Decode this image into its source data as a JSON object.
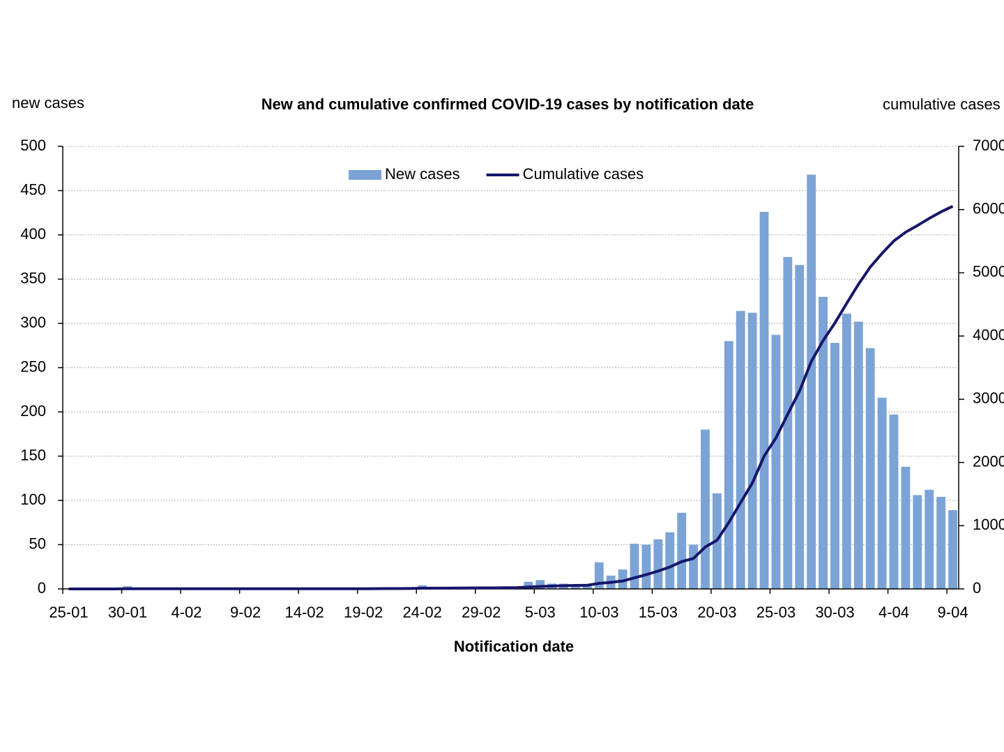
{
  "chart_data": {
    "type": "bar_line",
    "title": "New and cumulative confirmed COVID-19 cases by notification date",
    "y_label": "new cases",
    "y2_label": "cumulative cases",
    "x_label": "Notification date",
    "categories": [
      "25-01",
      null,
      null,
      null,
      null,
      "30-01",
      null,
      null,
      null,
      null,
      "4-02",
      null,
      null,
      null,
      null,
      "9-02",
      null,
      null,
      null,
      null,
      "14-02",
      null,
      null,
      null,
      null,
      "19-02",
      null,
      null,
      null,
      null,
      "24-02",
      null,
      null,
      null,
      null,
      "29-02",
      null,
      null,
      null,
      null,
      "5-03",
      null,
      null,
      null,
      null,
      "10-03",
      null,
      null,
      null,
      null,
      "15-03",
      null,
      null,
      null,
      null,
      "20-03",
      null,
      null,
      null,
      null,
      "25-03",
      null,
      null,
      null,
      null,
      "30-03",
      null,
      null,
      null,
      null,
      "4-04",
      null,
      null,
      null,
      null,
      "9-04"
    ],
    "series": [
      {
        "name": "New cases",
        "color": "#7ba3d6",
        "type": "bar",
        "values": [
          0,
          0,
          0,
          0,
          0,
          3,
          0,
          0,
          0,
          0,
          0,
          0,
          0,
          0,
          0,
          0,
          0,
          0,
          0,
          0,
          0,
          0,
          0,
          0,
          0,
          0,
          1,
          1,
          1,
          1,
          4,
          1,
          1,
          1,
          1,
          1,
          1,
          2,
          2,
          8,
          10,
          6,
          6,
          4,
          3,
          30,
          15,
          22,
          51,
          50,
          56,
          64,
          86,
          50,
          180,
          108,
          280,
          314,
          312,
          426,
          287,
          375,
          366,
          468,
          330,
          278,
          311,
          302,
          272,
          216,
          197,
          138,
          106,
          112,
          104,
          89
        ]
      },
      {
        "name": "Cumulative cases",
        "color": "#16166b",
        "type": "line",
        "axis": "y2",
        "values": [
          0,
          0,
          0,
          0,
          0,
          3,
          3,
          3,
          3,
          3,
          3,
          3,
          3,
          3,
          3,
          3,
          3,
          3,
          3,
          3,
          3,
          3,
          3,
          3,
          3,
          3,
          4,
          5,
          6,
          7,
          11,
          12,
          13,
          14,
          15,
          16,
          17,
          19,
          21,
          29,
          39,
          45,
          51,
          55,
          58,
          88,
          103,
          125,
          176,
          226,
          282,
          346,
          432,
          482,
          662,
          770,
          1050,
          1364,
          1676,
          2102,
          2389,
          2764,
          3130,
          3598,
          3928,
          4206,
          4517,
          4819,
          5091,
          5307,
          5504,
          5642,
          5748,
          5860,
          5964,
          6053
        ]
      }
    ],
    "ylim": [
      0,
      500
    ],
    "yticks": [
      0,
      50,
      100,
      150,
      200,
      250,
      300,
      350,
      400,
      450,
      500
    ],
    "y2lim": [
      0,
      7000
    ],
    "y2ticks": [
      0,
      1000,
      2000,
      3000,
      4000,
      5000,
      6000,
      7000
    ],
    "grid": true,
    "legend": "top"
  }
}
